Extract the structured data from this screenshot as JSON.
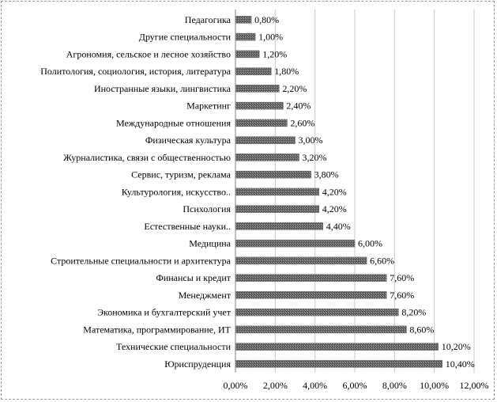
{
  "chart_data": {
    "type": "bar",
    "orientation": "horizontal",
    "categories": [
      "Педагогика",
      "Другие специальности",
      "Агрономия, сельское и лесное хозяйство",
      "Политология, социология, история, литература",
      "Иностранные языки, лингвистика",
      "Маркетинг",
      "Международные отношения",
      "Физическая культура",
      "Журналистика, связи с общественностью",
      "Сервис, туризм, реклама",
      "Культурология, искусство..",
      "Психология",
      "Естественные науки..",
      "Медицина",
      "Строительные специальности и архитектура",
      "Финансы и кредит",
      "Менеджмент",
      "Экономика и бухгалтерский учет",
      "Математика, программирование, ИТ",
      "Технические специальности",
      "Юриспруденция"
    ],
    "values": [
      0.8,
      1.0,
      1.2,
      1.8,
      2.2,
      2.4,
      2.6,
      3.0,
      3.2,
      3.8,
      4.2,
      4.2,
      4.4,
      6.0,
      6.6,
      7.6,
      7.6,
      8.2,
      8.6,
      10.2,
      10.4
    ],
    "value_labels": [
      "0,80%",
      "1,00%",
      "1,20%",
      "1,80%",
      "2,20%",
      "2,40%",
      "2,60%",
      "3,00%",
      "3,20%",
      "3,80%",
      "4,20%",
      "4,20%",
      "4,40%",
      "6,00%",
      "6,60%",
      "7,60%",
      "7,60%",
      "8,20%",
      "8,60%",
      "10,20%",
      "10,40%"
    ],
    "xticks": [
      "0,00%",
      "2,00%",
      "4,00%",
      "6,00%",
      "8,00%",
      "10,00%",
      "12,00%"
    ],
    "xlim": [
      0,
      12
    ],
    "grid": true,
    "bar_color": "#6e6e6e"
  }
}
